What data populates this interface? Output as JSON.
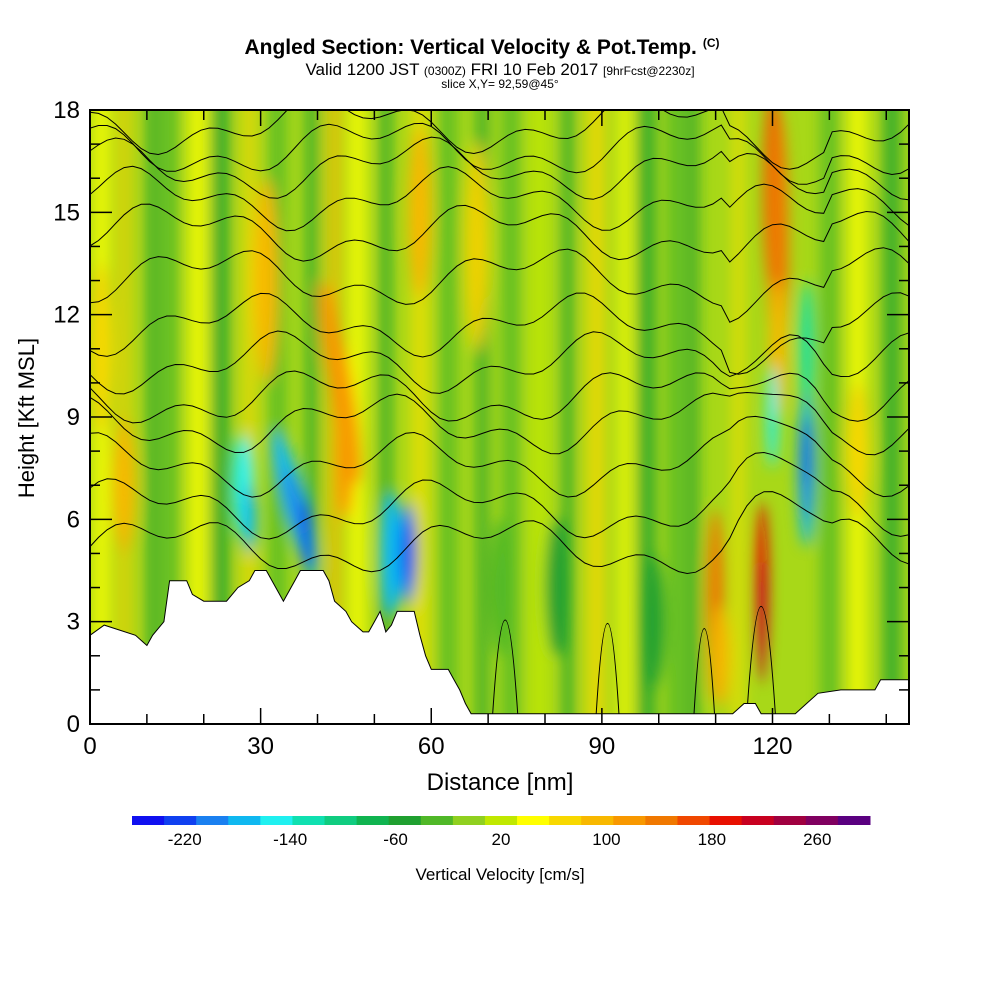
{
  "chart_data": {
    "type": "heatmap",
    "title": "Angled Section: Vertical Velocity & Pot.Temp.",
    "title_units": "(C)",
    "subtitle_main": "Valid 1200 JST",
    "subtitle_utc": "(0300Z)",
    "subtitle_date": "FRI 10 Feb 2017",
    "subtitle_fcst": "[9hrFcst@2230z]",
    "subtitle2": "slice X,Y= 92,59@45°",
    "xlabel": "Distance [nm]",
    "ylabel": "Height [Kft MSL]",
    "xlim": [
      0,
      144
    ],
    "ylim": [
      0,
      18
    ],
    "x_ticks": [
      "0",
      "30",
      "60",
      "90",
      "120"
    ],
    "y_ticks": [
      "0",
      "3",
      "6",
      "9",
      "12",
      "15",
      "18"
    ],
    "colorbar": {
      "label": "Vertical Velocity [cm/s]",
      "tick_labels": [
        "-220",
        "-140",
        "-60",
        "20",
        "100",
        "180",
        "260"
      ],
      "colors": [
        "#1010f0",
        "#1040f0",
        "#1a80f0",
        "#10b8f0",
        "#20f0f0",
        "#10e0b0",
        "#10cc80",
        "#10b450",
        "#20a030",
        "#50b828",
        "#90d020",
        "#c0e800",
        "#ffff00",
        "#f8d800",
        "#f8b800",
        "#f89800",
        "#f07800",
        "#f04800",
        "#e81000",
        "#c80020",
        "#a00040",
        "#800060",
        "#5a0080"
      ]
    },
    "velocity_features": [
      {
        "x": 36,
        "y": 6,
        "w": -190
      },
      {
        "x": 55,
        "y": 5,
        "w": -180
      },
      {
        "x": 118,
        "y": 4,
        "w": 230
      },
      {
        "x": 126,
        "y": 7,
        "w": -180
      },
      {
        "x": 121,
        "y": 14,
        "w": 160
      },
      {
        "x": 110,
        "y": 3,
        "w": 120
      }
    ],
    "terrain": [
      [
        0,
        2.6
      ],
      [
        2.5,
        2.9
      ],
      [
        8,
        2.6
      ],
      [
        10,
        2.3
      ],
      [
        11,
        2.6
      ],
      [
        13,
        3.0
      ],
      [
        14,
        4.2
      ],
      [
        17,
        4.2
      ],
      [
        18,
        3.8
      ],
      [
        20,
        3.6
      ],
      [
        24,
        3.6
      ],
      [
        25,
        3.8
      ],
      [
        26,
        4.0
      ],
      [
        28,
        4.2
      ],
      [
        29,
        4.5
      ],
      [
        31,
        4.5
      ],
      [
        32,
        4.2
      ],
      [
        33,
        3.9
      ],
      [
        34,
        3.6
      ],
      [
        35,
        3.9
      ],
      [
        36,
        4.2
      ],
      [
        37,
        4.5
      ],
      [
        41,
        4.5
      ],
      [
        42,
        4.2
      ],
      [
        43,
        3.6
      ],
      [
        45,
        3.3
      ],
      [
        46,
        3.0
      ],
      [
        48,
        2.7
      ],
      [
        49,
        2.7
      ],
      [
        50,
        3.0
      ],
      [
        51,
        3.3
      ],
      [
        52,
        2.7
      ],
      [
        53,
        2.9
      ],
      [
        54,
        3.3
      ],
      [
        57,
        3.3
      ],
      [
        58,
        2.6
      ],
      [
        59,
        2.0
      ],
      [
        60,
        1.6
      ],
      [
        63,
        1.6
      ],
      [
        64,
        1.3
      ],
      [
        65,
        1.0
      ],
      [
        66,
        0.6
      ],
      [
        67,
        0.3
      ],
      [
        113,
        0.3
      ],
      [
        115,
        0.6
      ],
      [
        117,
        0.6
      ],
      [
        118,
        0.3
      ],
      [
        124,
        0.3
      ],
      [
        126,
        0.6
      ],
      [
        128,
        0.9
      ],
      [
        132,
        1.0
      ],
      [
        138,
        1.0
      ],
      [
        139,
        1.3
      ],
      [
        144,
        1.3
      ]
    ]
  }
}
